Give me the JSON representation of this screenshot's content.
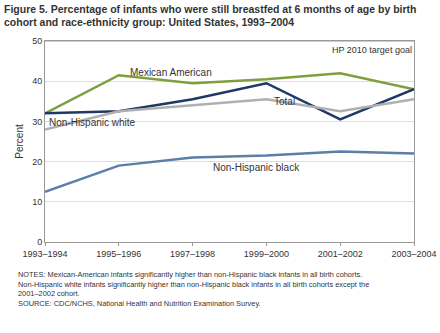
{
  "chart_data": {
    "type": "line",
    "title": "Figure 5. Percentage of infants who were still breastfed at 6 months of age by birth cohort and race-ethnicity group: United States, 1993–2004",
    "y_label": "Percent",
    "categories": [
      "1993–1994",
      "1995–1996",
      "1997–1998",
      "1999–2000",
      "2001–2002",
      "2003–2004"
    ],
    "series": [
      {
        "name": "Mexican American",
        "color": "#7f9f3f",
        "line_style": "solid",
        "values": [
          32,
          41.5,
          39.5,
          40.5,
          42,
          38
        ]
      },
      {
        "name": "Non-Hispanic white",
        "color": "#1f3864",
        "line_style": "solid",
        "values": [
          32,
          32.5,
          35.5,
          39.5,
          30.5,
          38
        ]
      },
      {
        "name": "Total",
        "color": "#b0b0b0",
        "line_style": "solid",
        "values": [
          28,
          32.5,
          34,
          35.5,
          32.5,
          35.5
        ]
      },
      {
        "name": "Non-Hispanic black",
        "color": "#5b7fa8",
        "line_style": "solid",
        "values": [
          12.5,
          19,
          21,
          21.5,
          22.5,
          22
        ]
      }
    ],
    "ylim": [
      0,
      50
    ],
    "yticks": [
      0,
      10,
      20,
      30,
      40,
      50
    ],
    "grid": true,
    "annotations": [
      {
        "text": "HP 2010 target goal",
        "y": 50
      }
    ],
    "notes": [
      "NOTES: Mexican-American infants significantly higher than non-Hispanic black infants in all birth cohorts.",
      "Non-Hispanic white infants significantly higher than non-Hispanic black infants in all birth cohorts except the",
      "2001–2002 cohort."
    ],
    "source": "SOURCE: CDC/NCHS, National Health and Nutrition Examination Survey."
  }
}
